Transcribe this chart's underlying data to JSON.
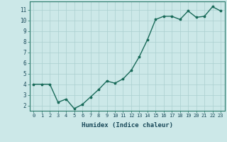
{
  "x": [
    0,
    1,
    2,
    3,
    4,
    5,
    6,
    7,
    8,
    9,
    10,
    11,
    12,
    13,
    14,
    15,
    16,
    17,
    18,
    19,
    20,
    21,
    22,
    23
  ],
  "y": [
    4.0,
    4.0,
    4.0,
    2.3,
    2.6,
    1.7,
    2.1,
    2.8,
    3.5,
    4.3,
    4.1,
    4.5,
    5.3,
    6.6,
    8.2,
    10.1,
    10.4,
    10.4,
    10.1,
    10.9,
    10.3,
    10.4,
    11.3,
    10.9
  ],
  "line_color": "#1a6b5a",
  "marker": "*",
  "marker_size": 2.5,
  "bg_color": "#cce8e8",
  "grid_color": "#aacfcf",
  "axis_label_color": "#1a3a5c",
  "tick_color": "#1a4a5a",
  "xlabel": "Humidex (Indice chaleur)",
  "xlabel_fontsize": 6.5,
  "xlabel_weight": "bold",
  "ylabel_ticks": [
    2,
    3,
    4,
    5,
    6,
    7,
    8,
    9,
    10,
    11
  ],
  "xlim": [
    -0.5,
    23.5
  ],
  "ylim": [
    1.5,
    11.8
  ],
  "spine_color": "#2a7a6a",
  "linewidth": 1.0,
  "tick_fontsize": 5.0
}
